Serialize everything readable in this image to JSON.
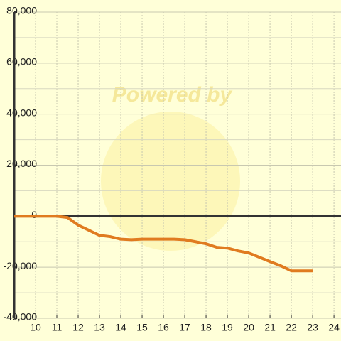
{
  "chart_data": {
    "type": "line",
    "watermark": "Powered by",
    "x": [
      9,
      9.5,
      10,
      10.5,
      11,
      11.5,
      12,
      12.5,
      13,
      13.5,
      14,
      14.5,
      15,
      15.5,
      16,
      16.5,
      17,
      17.5,
      18,
      18.5,
      19,
      19.5,
      20,
      20.5,
      21,
      21.5,
      22,
      22.5,
      23
    ],
    "series": [
      {
        "color": "#e07b20",
        "values": [
          0,
          0,
          0,
          0,
          0,
          -500,
          -3500,
          -5500,
          -7500,
          -8000,
          -9000,
          -9200,
          -9000,
          -9000,
          -9000,
          -9000,
          -9200,
          -10000,
          -10800,
          -12200,
          -12500,
          -13600,
          -14400,
          -16100,
          -17800,
          -19400,
          -21400,
          -21400,
          -21400
        ]
      }
    ],
    "xlim": [
      9,
      24.33
    ],
    "xticks": [
      10,
      11,
      12,
      13,
      14,
      15,
      16,
      17,
      18,
      19,
      20,
      21,
      22,
      23,
      24
    ],
    "ylim": [
      -40000,
      80000
    ],
    "yticks": [
      {
        "value": -40000,
        "label": "-40,000"
      },
      {
        "value": -20000,
        "label": "-20,000"
      },
      0,
      {
        "value": 20000,
        "label": "20,000"
      },
      {
        "value": 40000,
        "label": "40,000"
      },
      {
        "value": 60000,
        "label": "60,000"
      },
      {
        "value": 80000,
        "label": "80,000"
      }
    ],
    "y_minor_ticks": [
      -30000,
      -10000,
      10000,
      30000,
      50000,
      70000
    ],
    "grid": true
  }
}
